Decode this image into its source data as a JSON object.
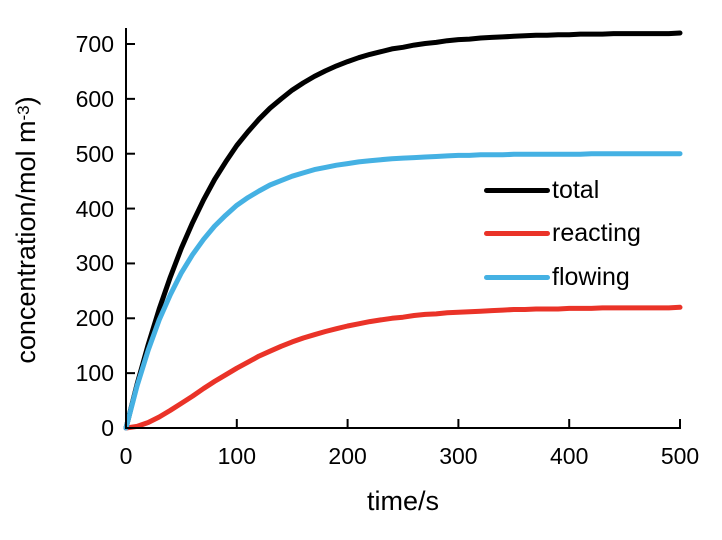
{
  "figure": {
    "background": "#ffffff",
    "axis_color": "#000000",
    "text_color": "#000000"
  },
  "chart_data": {
    "type": "line",
    "title": "",
    "xlabel": "time/s",
    "ylabel": "concentration/mol m⁻³)",
    "ylabel_base": "concentration/mol m",
    "ylabel_superscript": "-3",
    "ylabel_suffix": ")",
    "xlim": [
      0,
      500
    ],
    "ylim": [
      0,
      700
    ],
    "x_ticks": [
      0,
      100,
      200,
      300,
      400,
      500
    ],
    "y_ticks": [
      0,
      100,
      200,
      300,
      400,
      500,
      600,
      700
    ],
    "grid": false,
    "legend_position": "inside-right",
    "x": [
      0,
      10,
      20,
      30,
      40,
      50,
      60,
      70,
      80,
      90,
      100,
      110,
      120,
      130,
      140,
      150,
      160,
      170,
      180,
      190,
      200,
      210,
      220,
      230,
      240,
      250,
      260,
      270,
      280,
      290,
      300,
      310,
      320,
      330,
      340,
      350,
      360,
      370,
      380,
      390,
      400,
      410,
      420,
      430,
      440,
      450,
      460,
      470,
      480,
      490,
      500
    ],
    "series": [
      {
        "name": "total",
        "color": "#000000",
        "plateau": 720,
        "values": [
          0,
          80,
          152,
          217,
          275,
          328,
          374,
          416,
          453,
          485,
          515,
          540,
          563,
          583,
          600,
          616,
          629,
          641,
          651,
          660,
          668,
          675,
          681,
          686,
          691,
          694,
          698,
          701,
          703,
          706,
          708,
          709,
          711,
          712,
          713,
          714,
          715,
          716,
          716,
          717,
          717,
          718,
          718,
          718,
          719,
          719,
          719,
          719,
          719,
          719,
          720
        ]
      },
      {
        "name": "reacting",
        "color": "#ea3328",
        "plateau": 220,
        "values": [
          0,
          3,
          10,
          20,
          32,
          45,
          58,
          72,
          85,
          97,
          109,
          120,
          131,
          140,
          149,
          157,
          164,
          170,
          176,
          181,
          186,
          190,
          194,
          197,
          200,
          202,
          205,
          207,
          208,
          210,
          211,
          212,
          213,
          214,
          215,
          216,
          216,
          217,
          217,
          217,
          218,
          218,
          218,
          219,
          219,
          219,
          219,
          219,
          219,
          219,
          220
        ]
      },
      {
        "name": "flowing",
        "color": "#45b1e3",
        "plateau": 500,
        "values": [
          0,
          77,
          142,
          197,
          243,
          283,
          316,
          344,
          368,
          388,
          406,
          420,
          432,
          443,
          451,
          459,
          465,
          471,
          475,
          479,
          482,
          485,
          487,
          489,
          491,
          492,
          493,
          494,
          495,
          496,
          497,
          497,
          498,
          498,
          498,
          499,
          499,
          499,
          499,
          499,
          499,
          499,
          500,
          500,
          500,
          500,
          500,
          500,
          500,
          500,
          500
        ]
      }
    ]
  }
}
